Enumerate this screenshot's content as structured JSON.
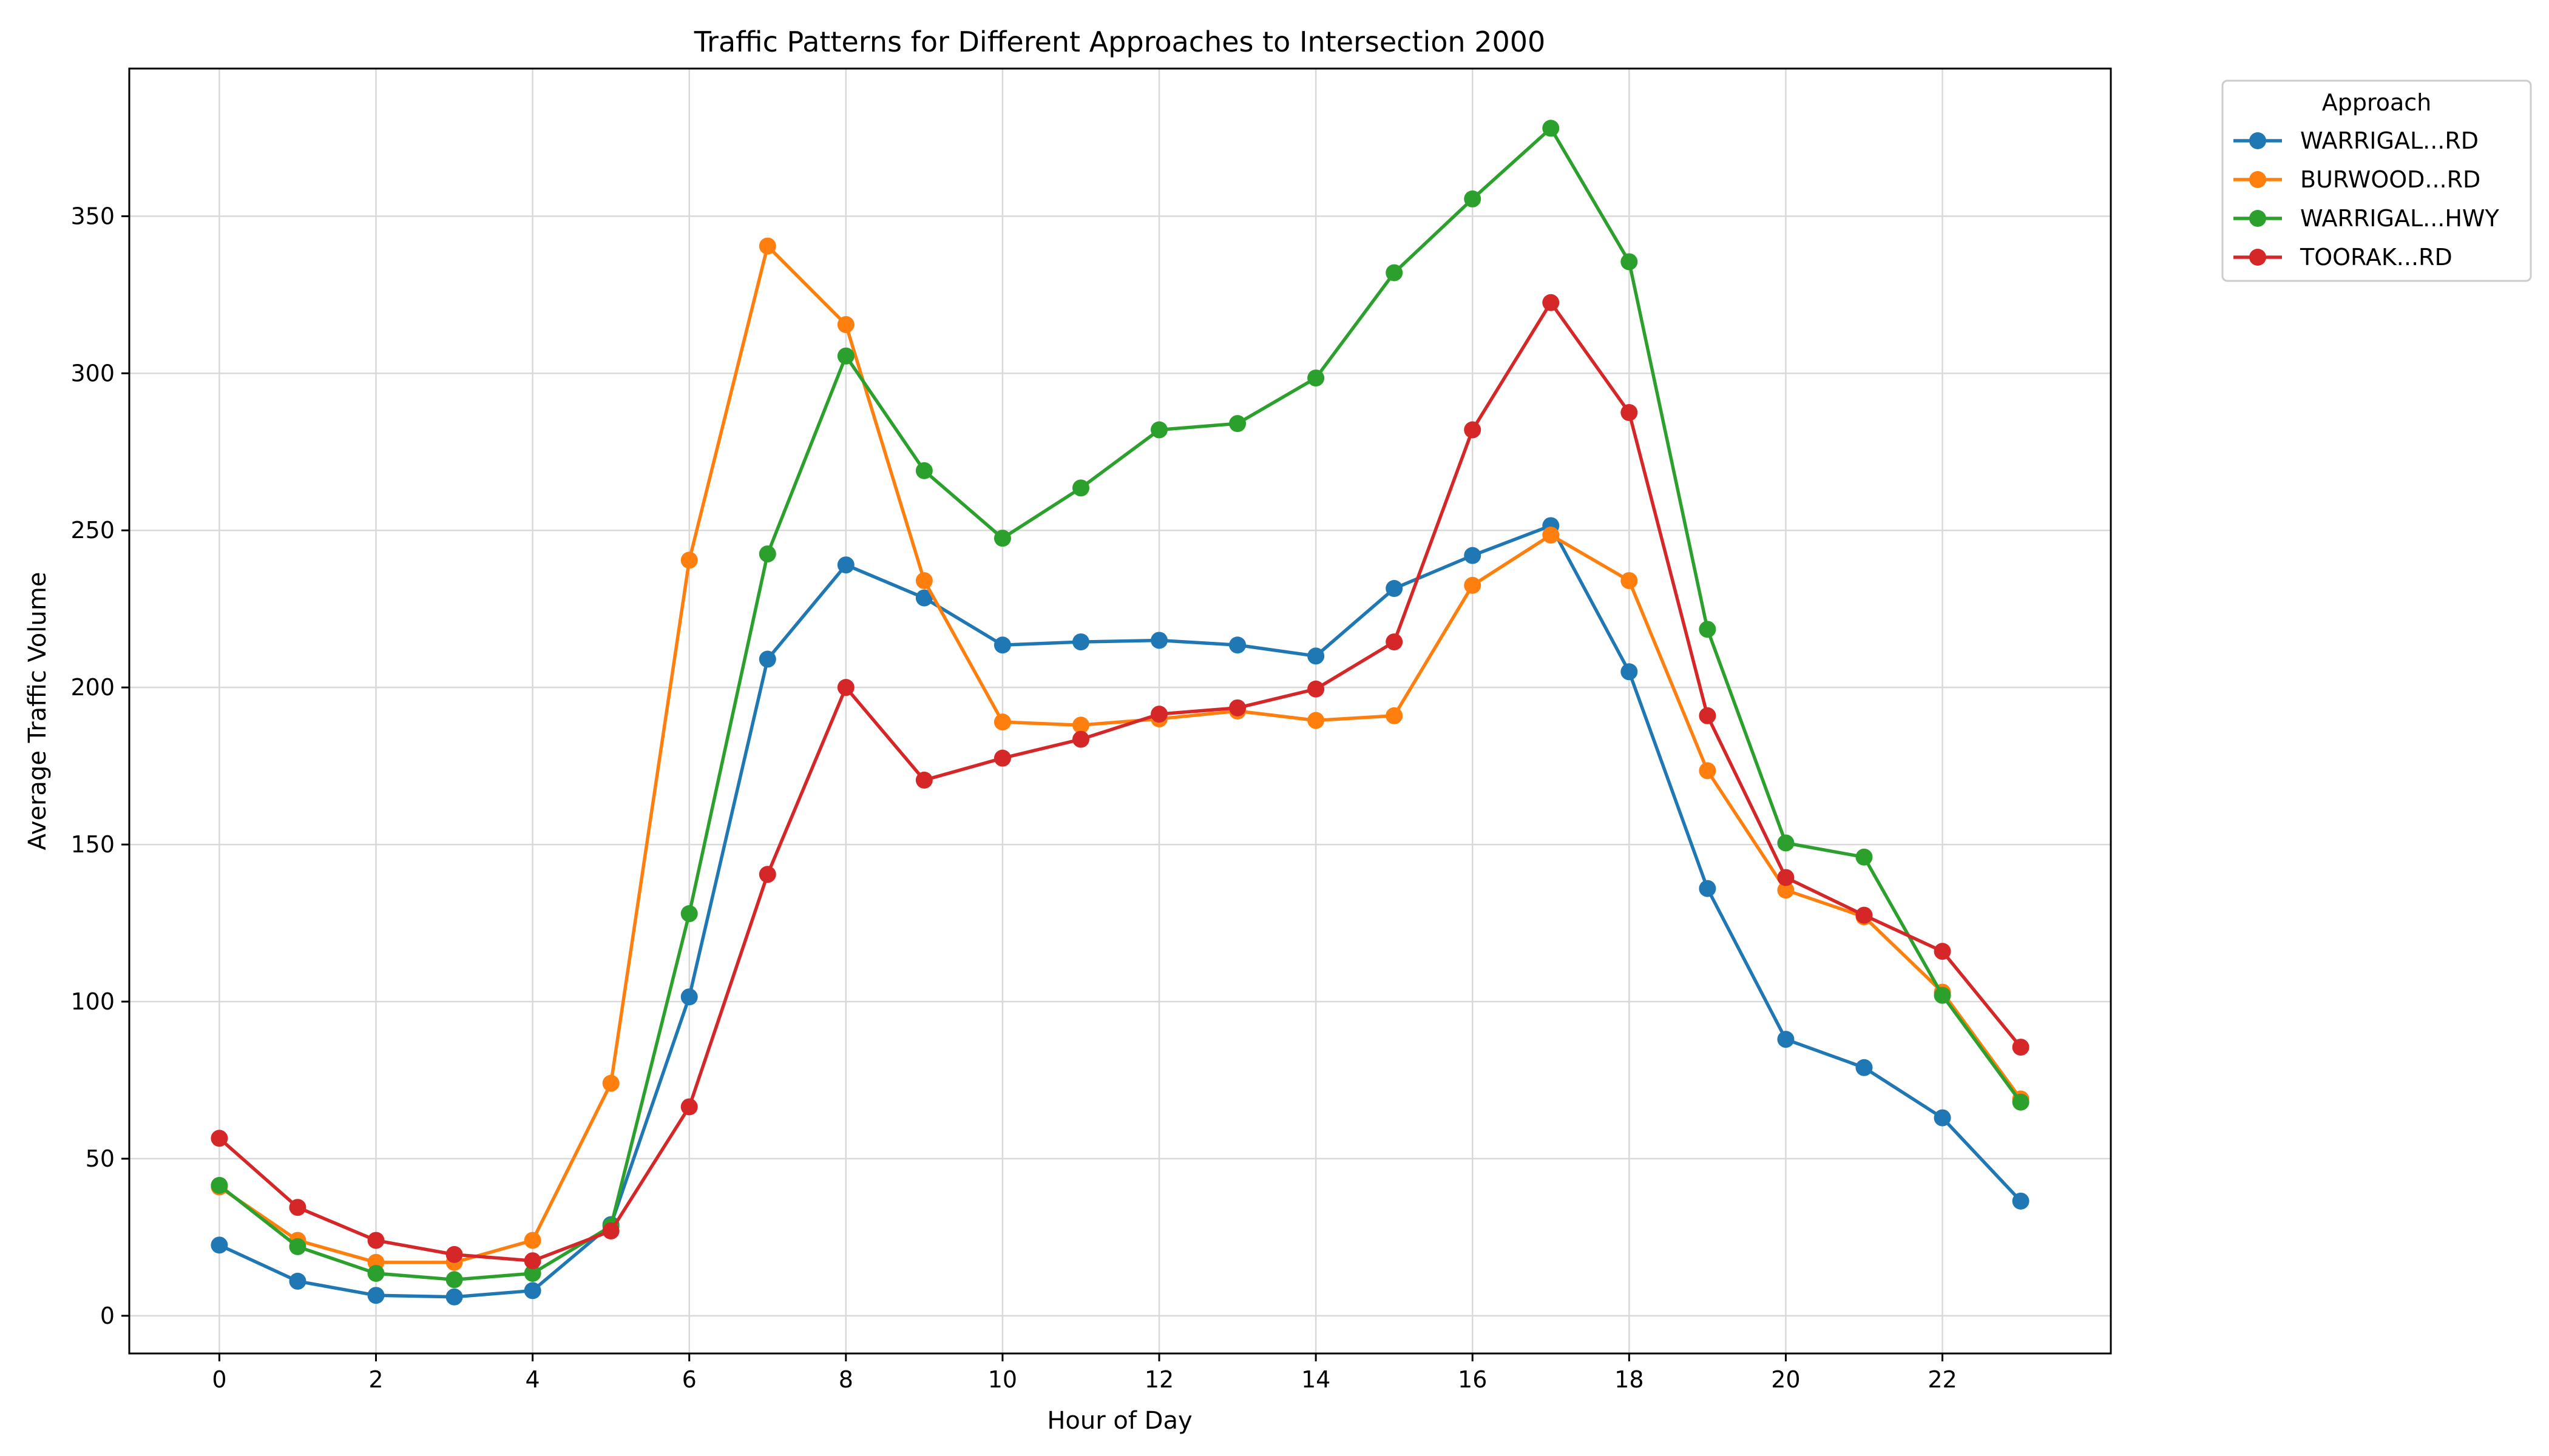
{
  "chart_data": {
    "type": "line",
    "title": "Traffic Patterns for Different Approaches to Intersection 2000",
    "xlabel": "Hour of Day",
    "ylabel": "Average Traffic Volume",
    "x": [
      0,
      1,
      2,
      3,
      4,
      5,
      6,
      7,
      8,
      9,
      10,
      11,
      12,
      13,
      14,
      15,
      16,
      17,
      18,
      19,
      20,
      21,
      22,
      23
    ],
    "xticks": [
      0,
      2,
      4,
      6,
      8,
      10,
      12,
      14,
      16,
      18,
      20,
      22
    ],
    "yticks": [
      0,
      50,
      100,
      150,
      200,
      250,
      300,
      350
    ],
    "xlim": [
      -1.15,
      24.15
    ],
    "ylim": [
      -12,
      397
    ],
    "grid": true,
    "legend": {
      "title": "Approach",
      "placement": "outside-top-right"
    },
    "series": [
      {
        "name": "WARRIGAL...RD",
        "color": "#1f77b4",
        "values": [
          22.5,
          11,
          6.5,
          6,
          8,
          29,
          101.5,
          209,
          239,
          228.5,
          213.5,
          214.5,
          215,
          213.5,
          210,
          231.5,
          242,
          251.5,
          205,
          136,
          88,
          79,
          63,
          36.5
        ]
      },
      {
        "name": "BURWOOD...RD",
        "color": "#ff7f0e",
        "values": [
          41,
          24,
          17,
          17,
          24,
          74,
          240.5,
          340.5,
          315.5,
          234,
          189,
          188,
          190,
          192.5,
          189.5,
          191,
          232.5,
          248.5,
          234,
          173.5,
          135.5,
          127,
          103,
          69
        ]
      },
      {
        "name": "WARRIGAL...HWY",
        "color": "#2ca02c",
        "values": [
          41.5,
          22,
          13.5,
          11.5,
          13.5,
          28.5,
          128,
          242.5,
          305.5,
          269,
          247.5,
          263.5,
          282,
          284,
          298.5,
          332,
          355.5,
          378,
          335.5,
          218.5,
          150.5,
          146,
          102,
          68
        ]
      },
      {
        "name": "TOORAK...RD",
        "color": "#d62728",
        "values": [
          56.5,
          34.5,
          24,
          19.5,
          17.5,
          27,
          66.5,
          140.5,
          200,
          170.5,
          177.5,
          183.5,
          191.5,
          193.5,
          199.5,
          214.5,
          282,
          322.5,
          287.5,
          191,
          139.5,
          127.5,
          116,
          85.5
        ]
      }
    ]
  }
}
